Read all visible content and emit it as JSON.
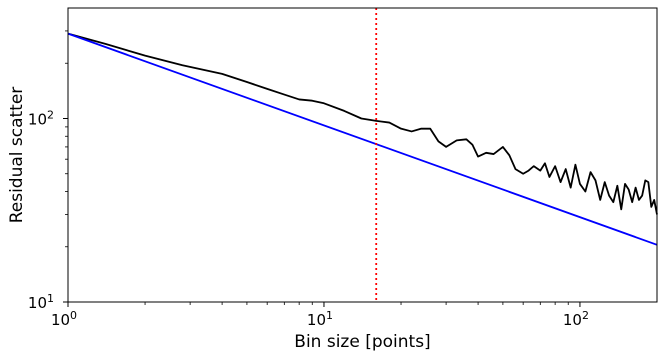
{
  "chart_data": {
    "type": "line",
    "title": "",
    "xlabel": "Bin size [points]",
    "ylabel": "Residual scatter",
    "xscale": "log",
    "yscale": "log",
    "xlim": [
      1,
      200
    ],
    "ylim": [
      10,
      400
    ],
    "x_ticks": [
      {
        "value": 1,
        "base": "10",
        "exp": "0"
      },
      {
        "value": 10,
        "base": "10",
        "exp": "1"
      },
      {
        "value": 100,
        "base": "10",
        "exp": "2"
      }
    ],
    "y_ticks": [
      {
        "value": 10,
        "base": "10",
        "exp": "1"
      },
      {
        "value": 100,
        "base": "10",
        "exp": "2"
      }
    ],
    "grid": false,
    "vline": {
      "x": 16,
      "color": "#ff0000",
      "style": "dotted"
    },
    "series": [
      {
        "color": "#000000",
        "x": [
          1,
          1.4,
          2,
          2.8,
          4,
          5,
          6,
          7,
          8,
          9,
          10,
          12,
          14,
          16,
          18,
          20,
          22,
          24,
          26,
          28,
          30,
          33,
          36,
          38,
          40,
          43,
          46,
          50,
          53,
          56,
          60,
          63,
          66,
          70,
          73,
          76,
          80,
          84,
          88,
          92,
          96,
          100,
          105,
          110,
          115,
          120,
          125,
          130,
          135,
          140,
          145,
          150,
          155,
          160,
          165,
          170,
          175,
          180,
          185,
          190,
          195,
          200
        ],
        "y": [
          290,
          255,
          220,
          195,
          175,
          158,
          145,
          135,
          127,
          125,
          121,
          110,
          100,
          97,
          95,
          88,
          85,
          88,
          88,
          75,
          70,
          76,
          77,
          72,
          62,
          65,
          64,
          70,
          63,
          53,
          50,
          52,
          55,
          52,
          57,
          48,
          55,
          45,
          53,
          42,
          56,
          44,
          40,
          51,
          46,
          36,
          45,
          38,
          35,
          43,
          32,
          44,
          41,
          35,
          42,
          36,
          38,
          46,
          45,
          33,
          36,
          30
        ]
      },
      {
        "color": "#0000ff",
        "x": [
          1,
          200
        ],
        "y": [
          290,
          20.5
        ]
      }
    ]
  }
}
